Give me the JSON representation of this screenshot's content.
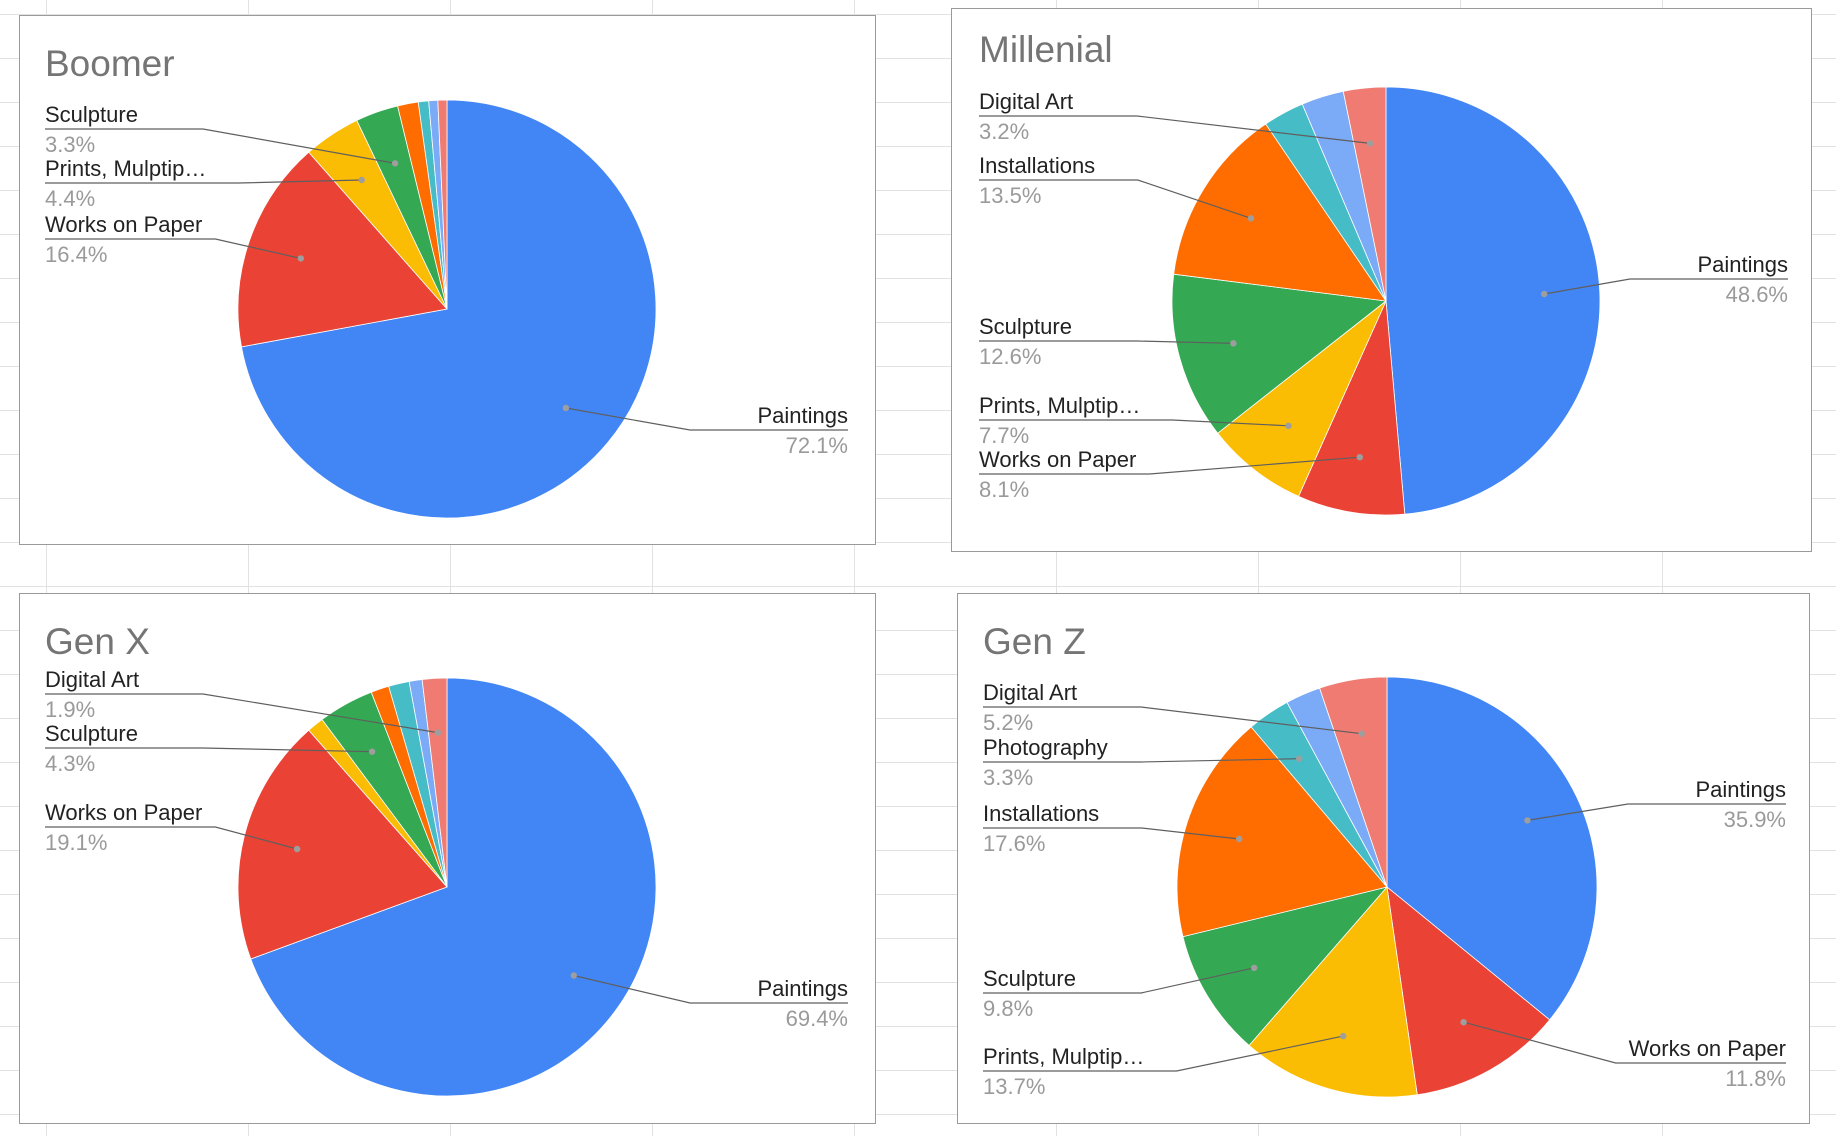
{
  "chart_data": [
    {
      "type": "pie",
      "title": "Boomer",
      "slices": [
        {
          "label": "Paintings",
          "value": 72.1,
          "color": "#4285f4",
          "value_label": "72.1%"
        },
        {
          "label": "Works on Paper",
          "value": 16.4,
          "color": "#ea4335",
          "value_label": "16.4%"
        },
        {
          "label": "Prints, Mulptip…",
          "value": 4.4,
          "color": "#fbbc04",
          "value_label": "4.4%"
        },
        {
          "label": "Sculpture",
          "value": 3.3,
          "color": "#34a853",
          "value_label": "3.3%"
        },
        {
          "label": "",
          "value": 1.6,
          "color": "#ff6d01",
          "value_label": ""
        },
        {
          "label": "",
          "value": 0.8,
          "color": "#46bdc6",
          "value_label": ""
        },
        {
          "label": "",
          "value": 0.7,
          "color": "#7baaf7",
          "value_label": ""
        },
        {
          "label": "",
          "value": 0.7,
          "color": "#f07b72",
          "value_label": ""
        }
      ]
    },
    {
      "type": "pie",
      "title": "Millenial",
      "slices": [
        {
          "label": "Paintings",
          "value": 48.6,
          "color": "#4285f4",
          "value_label": "48.6%"
        },
        {
          "label": "Works on Paper",
          "value": 8.1,
          "color": "#ea4335",
          "value_label": "8.1%"
        },
        {
          "label": "Prints, Mulptip…",
          "value": 7.7,
          "color": "#fbbc04",
          "value_label": "7.7%"
        },
        {
          "label": "Sculpture",
          "value": 12.6,
          "color": "#34a853",
          "value_label": "12.6%"
        },
        {
          "label": "Installations",
          "value": 13.5,
          "color": "#ff6d01",
          "value_label": "13.5%"
        },
        {
          "label": "",
          "value": 3.1,
          "color": "#46bdc6",
          "value_label": ""
        },
        {
          "label": "",
          "value": 3.2,
          "color": "#7baaf7",
          "value_label": ""
        },
        {
          "label": "Digital Art",
          "value": 3.2,
          "color": "#f07b72",
          "value_label": "3.2%"
        }
      ]
    },
    {
      "type": "pie",
      "title": "Gen X",
      "slices": [
        {
          "label": "Paintings",
          "value": 69.4,
          "color": "#4285f4",
          "value_label": "69.4%"
        },
        {
          "label": "Works on Paper",
          "value": 19.1,
          "color": "#ea4335",
          "value_label": "19.1%"
        },
        {
          "label": "",
          "value": 1.3,
          "color": "#fbbc04",
          "value_label": ""
        },
        {
          "label": "Sculpture",
          "value": 4.3,
          "color": "#34a853",
          "value_label": "4.3%"
        },
        {
          "label": "",
          "value": 1.4,
          "color": "#ff6d01",
          "value_label": ""
        },
        {
          "label": "",
          "value": 1.6,
          "color": "#46bdc6",
          "value_label": ""
        },
        {
          "label": "",
          "value": 1.0,
          "color": "#7baaf7",
          "value_label": ""
        },
        {
          "label": "Digital Art",
          "value": 1.9,
          "color": "#f07b72",
          "value_label": "1.9%"
        }
      ]
    },
    {
      "type": "pie",
      "title": "Gen Z",
      "slices": [
        {
          "label": "Paintings",
          "value": 35.9,
          "color": "#4285f4",
          "value_label": "35.9%"
        },
        {
          "label": "Works on Paper",
          "value": 11.8,
          "color": "#ea4335",
          "value_label": "11.8%"
        },
        {
          "label": "Prints, Mulptip…",
          "value": 13.7,
          "color": "#fbbc04",
          "value_label": "13.7%"
        },
        {
          "label": "Sculpture",
          "value": 9.8,
          "color": "#34a853",
          "value_label": "9.8%"
        },
        {
          "label": "Installations",
          "value": 17.6,
          "color": "#ff6d01",
          "value_label": "17.6%"
        },
        {
          "label": "Photography",
          "value": 3.3,
          "color": "#46bdc6",
          "value_label": "3.3%"
        },
        {
          "label": "",
          "value": 2.7,
          "color": "#7baaf7",
          "value_label": ""
        },
        {
          "label": "Digital Art",
          "value": 5.2,
          "color": "#f07b72",
          "value_label": "5.2%"
        }
      ]
    }
  ]
}
